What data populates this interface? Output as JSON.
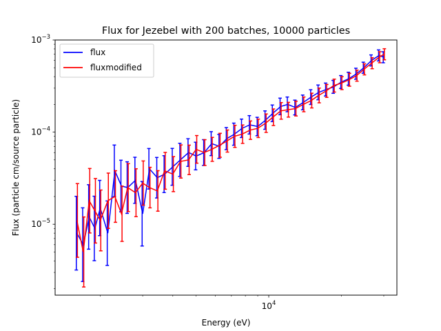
{
  "chart_data": {
    "type": "line",
    "title": "Flux for Jezebel with 200 batches, 10000 particles",
    "xlabel": "Energy (eV)",
    "ylabel": "Flux (particle cm/source particle)",
    "xscale": "log",
    "yscale": "log",
    "xlim": [
      1300,
      34000
    ],
    "ylim": [
      1.7e-06,
      0.001
    ],
    "x_ticks": [
      {
        "value": 10000,
        "base": "10",
        "exp": "4"
      }
    ],
    "y_ticks": [
      {
        "value": 1e-05,
        "base": "10",
        "exp": "−5"
      },
      {
        "value": 0.0001,
        "base": "10",
        "exp": "−4"
      },
      {
        "value": 0.001,
        "base": "10",
        "exp": "−3"
      }
    ],
    "grid": false,
    "legend": "top-left",
    "series": [
      {
        "name": "flux",
        "color": "#0000ff",
        "x": [
          1600,
          1700,
          1800,
          1900,
          2000,
          2150,
          2300,
          2450,
          2600,
          2800,
          3000,
          3200,
          3450,
          3700,
          4000,
          4300,
          4650,
          5000,
          5400,
          5800,
          6250,
          6700,
          7200,
          7750,
          8350,
          9000,
          9700,
          10400,
          11200,
          12000,
          12900,
          13900,
          15000,
          16100,
          17300,
          18600,
          20000,
          21500,
          23100,
          24800,
          26700,
          28700,
          30000
        ],
        "y": [
          8e-06,
          6e-06,
          1.2e-05,
          9e-06,
          1.5e-05,
          8e-06,
          3.8e-05,
          2.6e-05,
          2.5e-05,
          3e-05,
          1.3e-05,
          4e-05,
          3.2e-05,
          3.5e-05,
          4.2e-05,
          5e-05,
          6e-05,
          5.5e-05,
          6e-05,
          7.5e-05,
          7e-05,
          8.5e-05,
          9.5e-05,
          0.00011,
          0.00012,
          0.000115,
          0.000135,
          0.00016,
          0.00019,
          0.0002,
          0.000185,
          0.00021,
          0.00024,
          0.00027,
          0.00029,
          0.00031,
          0.00035,
          0.00038,
          0.00043,
          0.0005,
          0.0006,
          0.00068,
          0.00065
        ],
        "err": [
          0.4,
          0.4,
          0.35,
          0.35,
          0.3,
          0.35,
          0.28,
          0.28,
          0.28,
          0.25,
          0.35,
          0.22,
          0.22,
          0.2,
          0.2,
          0.18,
          0.15,
          0.15,
          0.14,
          0.13,
          0.13,
          0.12,
          0.12,
          0.1,
          0.1,
          0.1,
          0.1,
          0.09,
          0.09,
          0.08,
          0.08,
          0.08,
          0.08,
          0.08,
          0.07,
          0.07,
          0.07,
          0.07,
          0.06,
          0.06,
          0.06,
          0.06,
          0.06
        ]
      },
      {
        "name": "fluxmodified",
        "color": "#ff0000",
        "x": [
          1600,
          1700,
          1800,
          1900,
          2000,
          2150,
          2300,
          2450,
          2600,
          2800,
          3000,
          3200,
          3450,
          3700,
          4000,
          4300,
          4650,
          5000,
          5400,
          5800,
          6250,
          6700,
          7200,
          7750,
          8350,
          9000,
          9700,
          10400,
          11200,
          12000,
          12900,
          13900,
          15000,
          16100,
          17300,
          18600,
          20000,
          21500,
          23100,
          24800,
          26700,
          28700,
          30000
        ],
        "y": [
          1.1e-05,
          5e-06,
          1.8e-05,
          1.4e-05,
          1.1e-05,
          1.8e-05,
          2e-05,
          1.3e-05,
          2.5e-05,
          2.2e-05,
          2.8e-05,
          2.5e-05,
          2.3e-05,
          3.8e-05,
          3.5e-05,
          4.8e-05,
          5e-05,
          6.5e-05,
          6e-05,
          6.5e-05,
          7.2e-05,
          8e-05,
          9e-05,
          9.5e-05,
          0.000105,
          0.00011,
          0.000125,
          0.000145,
          0.00017,
          0.000175,
          0.00018,
          0.0002,
          0.00022,
          0.00025,
          0.00028,
          0.00032,
          0.00034,
          0.00037,
          0.00041,
          0.00048,
          0.00056,
          0.00065,
          0.0007
        ],
        "err": [
          0.4,
          0.38,
          0.35,
          0.35,
          0.33,
          0.3,
          0.28,
          0.3,
          0.26,
          0.26,
          0.24,
          0.22,
          0.22,
          0.2,
          0.19,
          0.18,
          0.16,
          0.15,
          0.14,
          0.13,
          0.13,
          0.12,
          0.12,
          0.1,
          0.1,
          0.1,
          0.1,
          0.09,
          0.09,
          0.08,
          0.08,
          0.08,
          0.08,
          0.08,
          0.07,
          0.07,
          0.07,
          0.07,
          0.06,
          0.06,
          0.06,
          0.06,
          0.06
        ]
      }
    ]
  }
}
